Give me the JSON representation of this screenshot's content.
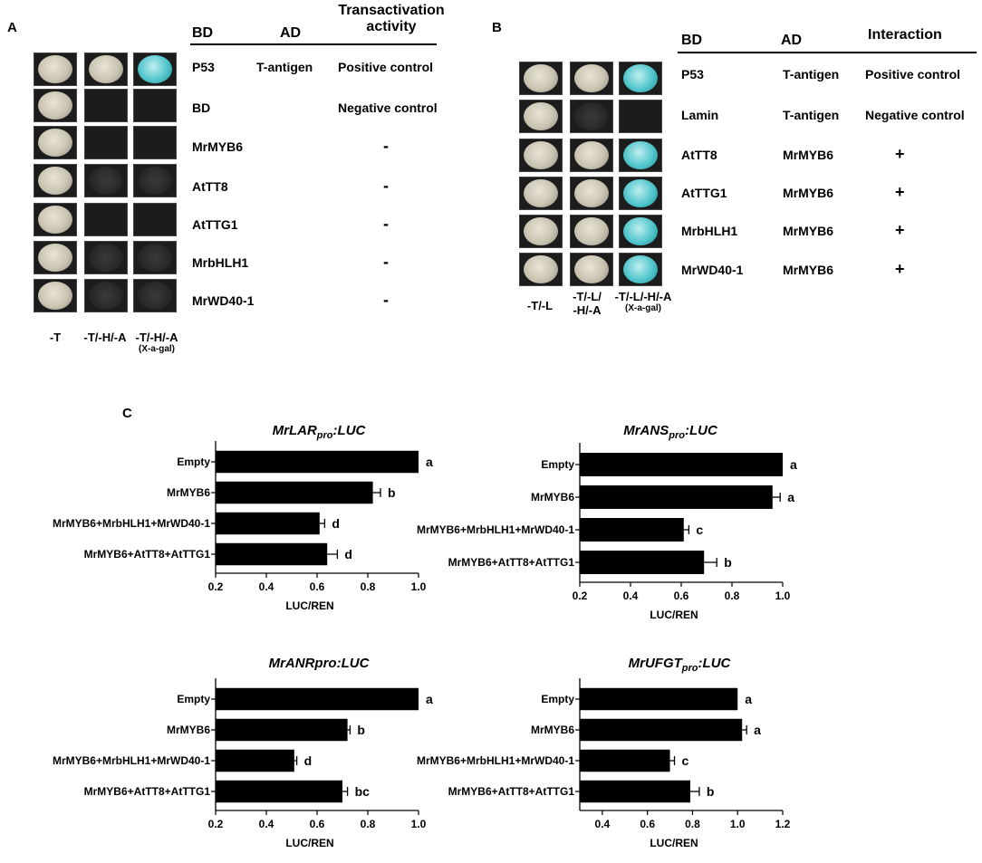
{
  "panelA": {
    "letter": "A",
    "headers": {
      "bd": "BD",
      "ad": "AD",
      "activity_line1": "Transactivation",
      "activity_line2": "activity"
    },
    "rows": [
      {
        "bd": "P53",
        "ad": "T-antigen",
        "result": "Positive control"
      },
      {
        "bd": "BD",
        "ad": "",
        "result": "Negative control"
      },
      {
        "bd": "MrMYB6",
        "ad": "",
        "result": "-"
      },
      {
        "bd": "AtTT8",
        "ad": "",
        "result": "-"
      },
      {
        "bd": "AtTTG1",
        "ad": "",
        "result": "-"
      },
      {
        "bd": "MrbHLH1",
        "ad": "",
        "result": "-"
      },
      {
        "bd": "MrWD40-1",
        "ad": "",
        "result": "-"
      }
    ],
    "conditions": [
      {
        "line1": "-T",
        "line2": ""
      },
      {
        "line1": "-T/-H/-A",
        "line2": ""
      },
      {
        "line1": "-T/-H/-A",
        "line2": "(X-a-gal)"
      }
    ]
  },
  "panelB": {
    "letter": "B",
    "headers": {
      "bd": "BD",
      "ad": "AD",
      "interaction": "Interaction"
    },
    "rows": [
      {
        "bd": "P53",
        "ad": "T-antigen",
        "result": "Positive control"
      },
      {
        "bd": "Lamin",
        "ad": "T-antigen",
        "result": "Negative control"
      },
      {
        "bd": "AtTT8",
        "ad": "MrMYB6",
        "result": "+"
      },
      {
        "bd": "AtTTG1",
        "ad": "MrMYB6",
        "result": "+"
      },
      {
        "bd": "MrbHLH1",
        "ad": "MrMYB6",
        "result": "+"
      },
      {
        "bd": "MrWD40-1",
        "ad": "MrMYB6",
        "result": "+"
      }
    ],
    "conditions": [
      {
        "line1": "-T/-L",
        "line2": "",
        "line3": ""
      },
      {
        "line1": "-T/-L/",
        "line2": "-H/-A",
        "line3": ""
      },
      {
        "line1": "-T/-L/-H/-A",
        "line2": "",
        "line3": "(X-a-gal)"
      }
    ]
  },
  "panelC": {
    "letter": "C"
  },
  "chart_data": [
    {
      "type": "bar",
      "title": "MrLARpro:LUC",
      "title_main": "MrLAR",
      "title_sub": "pro",
      "title_suffix": ":LUC",
      "categories": [
        "Empty",
        "MrMYB6",
        "MrMYB6+MrbHLH1+MrWD40-1",
        "MrMYB6+AtTT8+AtTTG1"
      ],
      "values": [
        1.0,
        0.82,
        0.61,
        0.64
      ],
      "errors": [
        0,
        0.03,
        0.02,
        0.04
      ],
      "letters": [
        "a",
        "b",
        "d",
        "d"
      ],
      "xlabel": "LUC/REN",
      "xlim": [
        0.2,
        1.0
      ],
      "ticks": [
        0.2,
        0.4,
        0.6,
        0.8,
        1.0
      ],
      "tick_labels": [
        "0.2",
        "0.4",
        "0.6",
        "0.8",
        "1.0"
      ]
    },
    {
      "type": "bar",
      "title": "MrANSpro:LUC",
      "title_main": "MrANS",
      "title_sub": "pro",
      "title_suffix": ":LUC",
      "categories": [
        "Empty",
        "MrMYB6",
        "MrMYB6+MrbHLH1+MrWD40-1",
        "MrMYB6+AtTT8+AtTTG1"
      ],
      "values": [
        1.0,
        0.96,
        0.61,
        0.69
      ],
      "errors": [
        0,
        0.03,
        0.02,
        0.05
      ],
      "letters": [
        "a",
        "a",
        "c",
        "b"
      ],
      "xlabel": "LUC/REN",
      "xlim": [
        0.2,
        1.0
      ],
      "ticks": [
        0.2,
        0.4,
        0.6,
        0.8,
        1.0
      ],
      "tick_labels": [
        "0.2",
        "0.4",
        "0.6",
        "0.8",
        "1.0"
      ]
    },
    {
      "type": "bar",
      "title": "MrANRpro:LUC",
      "title_main": "MrANR",
      "title_sub": "",
      "title_suffix": "pro:LUC",
      "categories": [
        "Empty",
        "MrMYB6",
        "MrMYB6+MrbHLH1+MrWD40-1",
        "MrMYB6+AtTT8+AtTTG1"
      ],
      "values": [
        1.0,
        0.72,
        0.51,
        0.7
      ],
      "errors": [
        0,
        0.01,
        0.01,
        0.02
      ],
      "letters": [
        "a",
        "b",
        "d",
        "bc"
      ],
      "xlabel": "LUC/REN",
      "xlim": [
        0.2,
        1.0
      ],
      "ticks": [
        0.2,
        0.4,
        0.6,
        0.8,
        1.0
      ],
      "tick_labels": [
        "0.2",
        "0.4",
        "0.6",
        "0.8",
        "1.0"
      ]
    },
    {
      "type": "bar",
      "title": "MrUFGTpro:LUC",
      "title_main": "MrUFGT",
      "title_sub": "pro",
      "title_suffix": ":LUC",
      "categories": [
        "Empty",
        "MrMYB6",
        "MrMYB6+MrbHLH1+MrWD40-1",
        "MrMYB6+AtTT8+AtTTG1"
      ],
      "values": [
        1.0,
        1.02,
        0.7,
        0.79
      ],
      "errors": [
        0,
        0.02,
        0.02,
        0.04
      ],
      "letters": [
        "a",
        "a",
        "c",
        "b"
      ],
      "xlabel": "LUC/REN",
      "xlim": [
        0.3,
        1.2
      ],
      "ticks": [
        0.4,
        0.6,
        0.8,
        1.0,
        1.2
      ],
      "tick_labels": [
        "0.4",
        "0.6",
        "0.8",
        "1.0",
        "1.2"
      ]
    }
  ]
}
